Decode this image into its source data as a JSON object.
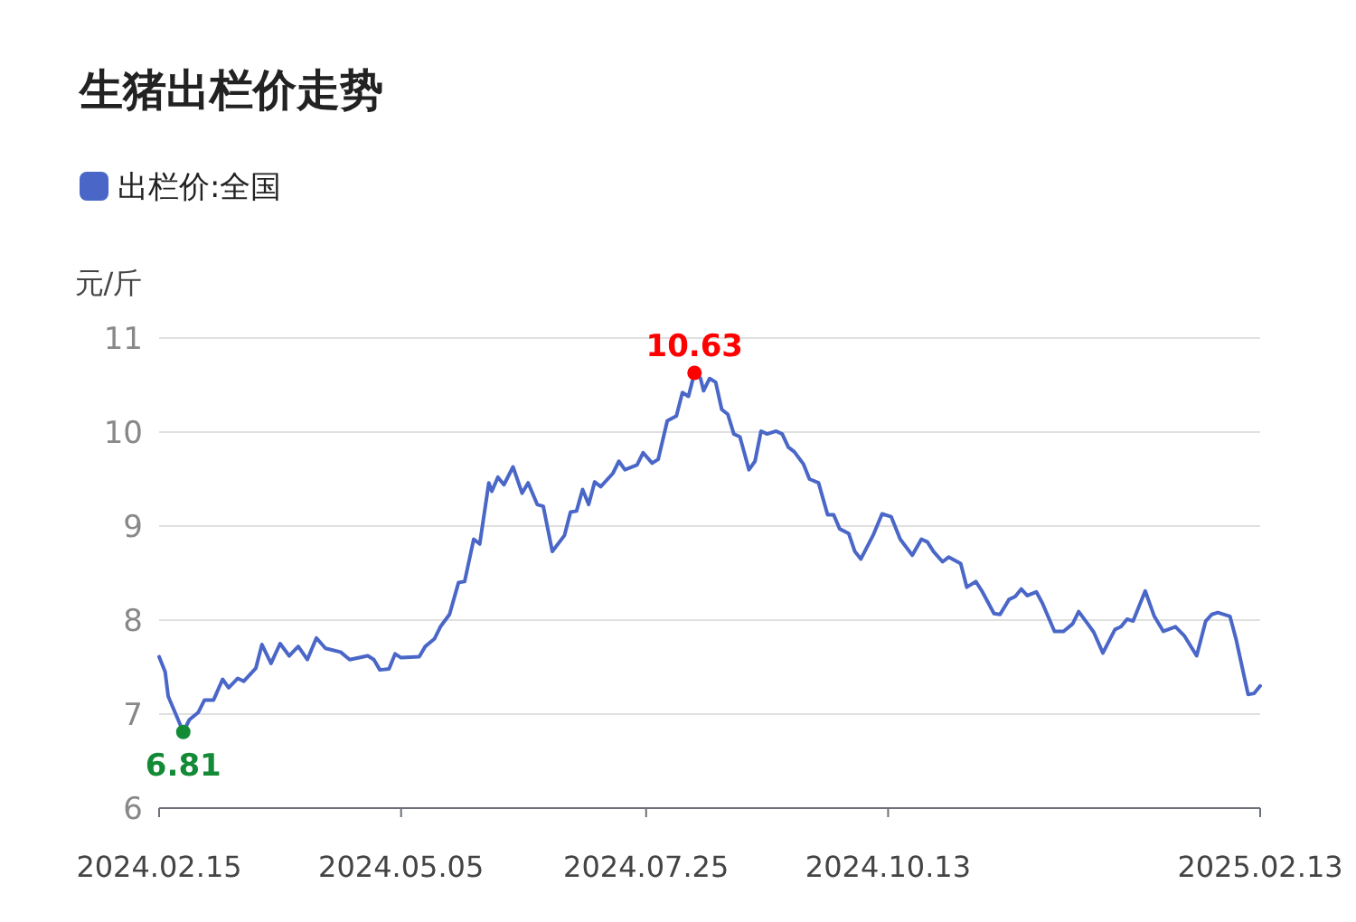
{
  "chart_data": {
    "type": "line",
    "title": "生猪出栏价走势",
    "ylabel": "元/斤",
    "legend": "top left",
    "grid": "y",
    "marker": "none",
    "line_style": "solid",
    "xlim": [
      "2024-02-15",
      "2025-02-13"
    ],
    "xticks": [
      {
        "value": "2024-02-15",
        "label": "2024.02.15"
      },
      {
        "value": "2024-05-05",
        "label": "2024.05.05"
      },
      {
        "value": "2024-07-25",
        "label": "2024.07.25"
      },
      {
        "value": "2024-10-13",
        "label": "2024.10.13"
      },
      {
        "value": "2025-02-13",
        "label": "2025.02.13"
      }
    ],
    "ylim": [
      6,
      11
    ],
    "yticks": [
      6,
      7,
      8,
      9,
      10,
      11
    ],
    "x": [
      "2024-02-15",
      "2024-02-17",
      "2024-02-18",
      "2024-02-23",
      "2024-02-25",
      "2024-02-28",
      "2024-03-01",
      "2024-03-04",
      "2024-03-07",
      "2024-03-09",
      "2024-03-12",
      "2024-03-14",
      "2024-03-18",
      "2024-03-20",
      "2024-03-23",
      "2024-03-26",
      "2024-03-29",
      "2024-04-01",
      "2024-04-04",
      "2024-04-07",
      "2024-04-10",
      "2024-04-15",
      "2024-04-18",
      "2024-04-24",
      "2024-04-26",
      "2024-04-28",
      "2024-05-01",
      "2024-05-03",
      "2024-05-05",
      "2024-05-11",
      "2024-05-13",
      "2024-05-16",
      "2024-05-18",
      "2024-05-21",
      "2024-05-24",
      "2024-05-26",
      "2024-05-29",
      "2024-05-31",
      "2024-06-03",
      "2024-06-04",
      "2024-06-06",
      "2024-06-08",
      "2024-06-11",
      "2024-06-14",
      "2024-06-16",
      "2024-06-19",
      "2024-06-21",
      "2024-06-24",
      "2024-06-28",
      "2024-06-30",
      "2024-07-02",
      "2024-07-04",
      "2024-07-06",
      "2024-07-08",
      "2024-07-10",
      "2024-07-14",
      "2024-07-16",
      "2024-07-18",
      "2024-07-22",
      "2024-07-24",
      "2024-07-27",
      "2024-07-29",
      "2024-08-01",
      "2024-08-04",
      "2024-08-06",
      "2024-08-08",
      "2024-08-10",
      "2024-08-12",
      "2024-08-13",
      "2024-08-15",
      "2024-08-17",
      "2024-08-19",
      "2024-08-21",
      "2024-08-23",
      "2024-08-25",
      "2024-08-28",
      "2024-08-30",
      "2024-09-01",
      "2024-09-03",
      "2024-09-06",
      "2024-09-08",
      "2024-09-10",
      "2024-09-12",
      "2024-09-15",
      "2024-09-17",
      "2024-09-20",
      "2024-09-23",
      "2024-09-25",
      "2024-09-27",
      "2024-09-30",
      "2024-10-02",
      "2024-10-04",
      "2024-10-08",
      "2024-10-11",
      "2024-10-14",
      "2024-10-17",
      "2024-10-21",
      "2024-10-24",
      "2024-10-26",
      "2024-10-28",
      "2024-10-31",
      "2024-11-02",
      "2024-11-06",
      "2024-11-08",
      "2024-11-11",
      "2024-11-13",
      "2024-11-17",
      "2024-11-19",
      "2024-11-22",
      "2024-11-24",
      "2024-11-26",
      "2024-11-28",
      "2024-12-01",
      "2024-12-03",
      "2024-12-07",
      "2024-12-10",
      "2024-12-13",
      "2024-12-15",
      "2024-12-18",
      "2024-12-20",
      "2024-12-23",
      "2024-12-27",
      "2024-12-29",
      "2024-12-31",
      "2025-01-02",
      "2025-01-06",
      "2025-01-09",
      "2025-01-12",
      "2025-01-16",
      "2025-01-19",
      "2025-01-23",
      "2025-01-26",
      "2025-01-28",
      "2025-01-30",
      "2025-02-03",
      "2025-02-05",
      "2025-02-09",
      "2025-02-11",
      "2025-02-13"
    ],
    "series": [
      {
        "name": "出栏价:全国",
        "color": "#4a67c8",
        "values": [
          7.61,
          7.45,
          7.19,
          6.81,
          6.94,
          7.02,
          7.15,
          7.15,
          7.37,
          7.28,
          7.38,
          7.35,
          7.49,
          7.74,
          7.54,
          7.75,
          7.62,
          7.72,
          7.58,
          7.81,
          7.7,
          7.66,
          7.58,
          7.62,
          7.58,
          7.47,
          7.48,
          7.64,
          7.6,
          7.61,
          7.72,
          7.8,
          7.93,
          8.06,
          8.4,
          8.41,
          8.86,
          8.81,
          9.46,
          9.37,
          9.52,
          9.44,
          9.63,
          9.35,
          9.46,
          9.23,
          9.21,
          8.73,
          8.9,
          9.15,
          9.16,
          9.39,
          9.23,
          9.47,
          9.42,
          9.56,
          9.69,
          9.6,
          9.65,
          9.78,
          9.67,
          9.71,
          10.12,
          10.17,
          10.42,
          10.38,
          10.63,
          10.57,
          10.44,
          10.57,
          10.53,
          10.24,
          10.19,
          9.98,
          9.95,
          9.6,
          9.69,
          10.01,
          9.98,
          10.01,
          9.98,
          9.84,
          9.79,
          9.66,
          9.5,
          9.46,
          9.12,
          9.12,
          8.97,
          8.92,
          8.73,
          8.65,
          8.9,
          9.13,
          9.1,
          8.86,
          8.69,
          8.86,
          8.83,
          8.73,
          8.62,
          8.67,
          8.6,
          8.35,
          8.41,
          8.31,
          8.07,
          8.06,
          8.22,
          8.25,
          8.33,
          8.26,
          8.3,
          8.18,
          7.88,
          7.88,
          7.96,
          8.09,
          7.96,
          7.87,
          7.65,
          7.9,
          7.93,
          8.01,
          7.99,
          8.31,
          8.04,
          7.88,
          7.93,
          7.83,
          7.62,
          7.99,
          8.06,
          8.08,
          8.04,
          7.8,
          7.21,
          7.22,
          7.3
        ]
      }
    ],
    "annotations": [
      {
        "text": "6.81",
        "x": "2024-02-23",
        "y": 6.81
      },
      {
        "text": "10.63",
        "x": "2024-08-10",
        "y": 10.63
      }
    ]
  }
}
